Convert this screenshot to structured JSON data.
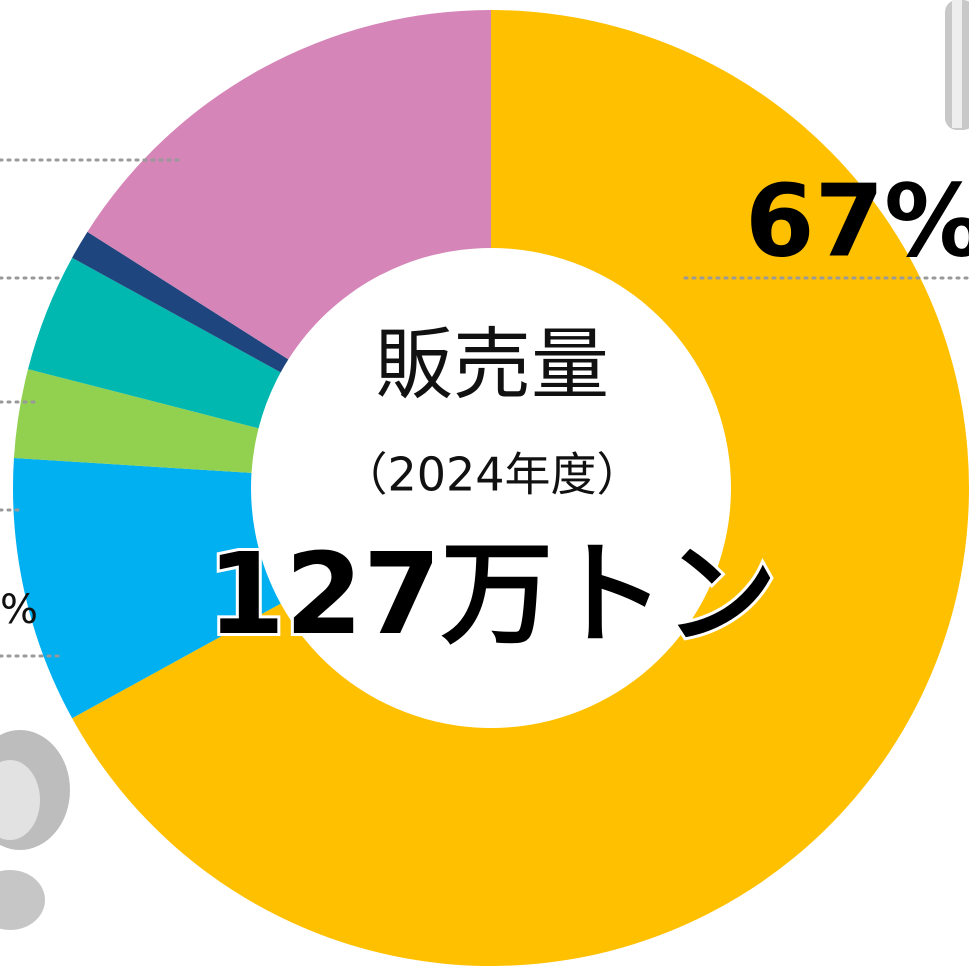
{
  "chart_data": {
    "type": "donut",
    "center_text": [
      "販売量",
      "（2024年度）",
      "127万トン"
    ],
    "categories": [
      null,
      null,
      null,
      null,
      null,
      null
    ],
    "values": [
      67,
      9,
      3,
      4,
      1,
      16
    ],
    "value_labels": [
      "67%",
      null,
      null,
      null,
      null,
      null
    ],
    "colors": [
      "#FFC000",
      "#00B0F0",
      "#92D050",
      "#00B8B0",
      "#1F457E",
      "#D685B8"
    ],
    "annotations": [
      "%"
    ]
  }
}
